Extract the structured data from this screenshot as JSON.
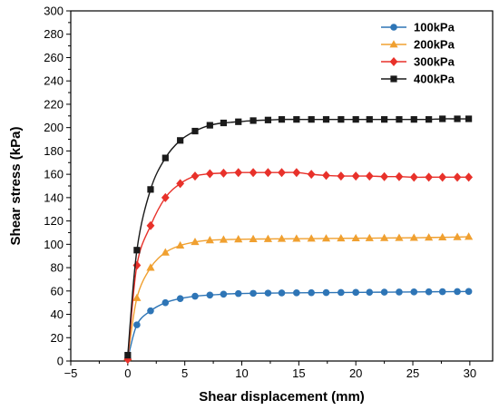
{
  "chart_data": {
    "type": "line",
    "title": "",
    "xlabel": "Shear displacement (mm)",
    "ylabel": "Shear stress (kPa)",
    "xlim": [
      -5,
      32
    ],
    "ylim": [
      0,
      300
    ],
    "xticks": [
      -5,
      0,
      5,
      10,
      15,
      20,
      25,
      30
    ],
    "yticks": [
      0,
      20,
      40,
      60,
      80,
      100,
      120,
      140,
      160,
      180,
      200,
      220,
      240,
      260,
      280,
      300
    ],
    "grid": false,
    "legend_position": "top-right",
    "x": [
      0,
      0.8,
      2,
      3.3,
      4.6,
      5.9,
      7.2,
      8.4,
      9.7,
      11,
      12.3,
      13.5,
      14.8,
      16.1,
      17.4,
      18.7,
      20,
      21.2,
      22.5,
      23.8,
      25.1,
      26.4,
      27.6,
      28.9,
      29.9
    ],
    "series": [
      {
        "name": "100kPa",
        "color": "#2e75b6",
        "marker": "circle",
        "values": [
          2,
          31,
          43,
          50,
          53.5,
          55.5,
          56.5,
          57.3,
          57.8,
          58,
          58.2,
          58.3,
          58.4,
          58.5,
          58.6,
          58.7,
          58.8,
          58.9,
          59,
          59.1,
          59.2,
          59.3,
          59.4,
          59.5,
          59.6
        ]
      },
      {
        "name": "200kPa",
        "color": "#f0a030",
        "marker": "triangle",
        "values": [
          3,
          54,
          80,
          93,
          99,
          102,
          103.5,
          104,
          104.3,
          104.5,
          104.6,
          104.7,
          104.8,
          104.9,
          105,
          105.1,
          105.2,
          105.3,
          105.4,
          105.5,
          105.6,
          105.8,
          106,
          106.2,
          106.5
        ]
      },
      {
        "name": "300kPa",
        "color": "#e8312a",
        "marker": "diamond",
        "values": [
          1.5,
          82,
          116,
          140,
          152,
          158.5,
          160.5,
          161,
          161.5,
          161.5,
          161.5,
          161.5,
          161.5,
          160,
          159,
          158.5,
          158.5,
          158.5,
          158,
          158,
          157.5,
          157.5,
          157.5,
          157.5,
          157.5
        ]
      },
      {
        "name": "400kPa",
        "color": "#1a1a1a",
        "marker": "square",
        "values": [
          5,
          95,
          147,
          174,
          189,
          197,
          202,
          204,
          205,
          206,
          206.5,
          207,
          207,
          207,
          207,
          207,
          207,
          207,
          207,
          207,
          207,
          207,
          207.5,
          207.5,
          207.5
        ]
      }
    ]
  }
}
